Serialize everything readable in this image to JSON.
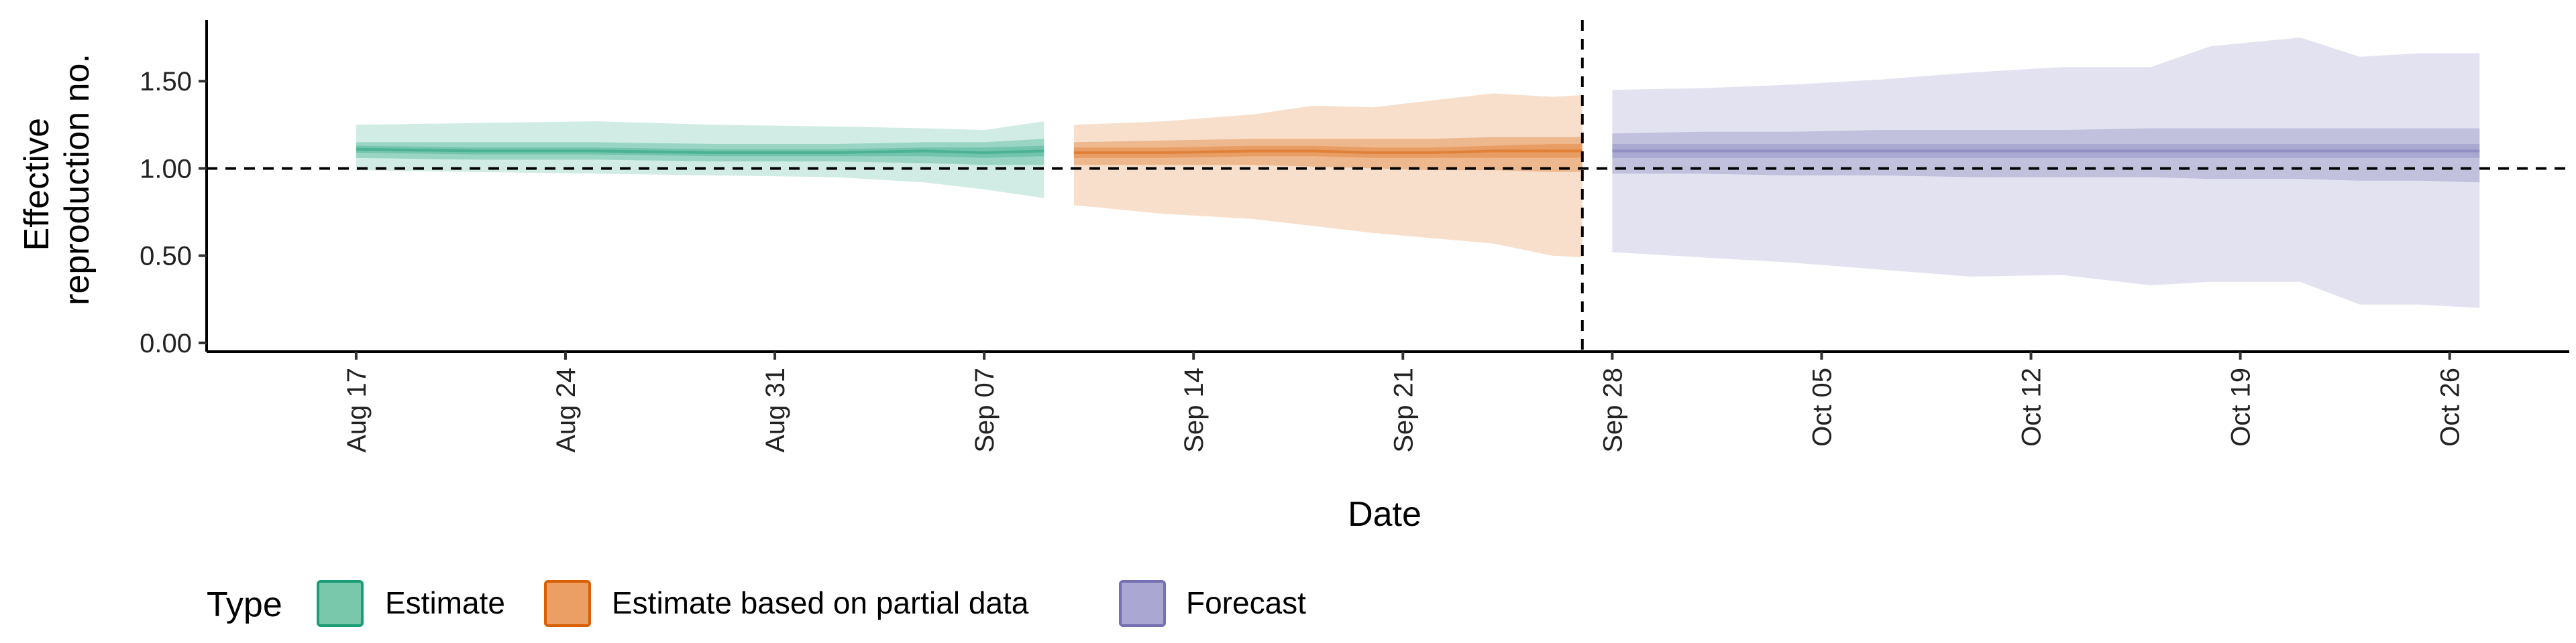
{
  "chart_data": {
    "type": "area",
    "xlabel": "Date",
    "ylabel_lines": [
      "Effective",
      "reproduction no."
    ],
    "ylim": [
      -0.05,
      1.85
    ],
    "xlim": [
      "2020-08-12",
      "2020-10-30"
    ],
    "y_ticks": [
      {
        "value": 0.0,
        "label": "0.00"
      },
      {
        "value": 0.5,
        "label": "0.50"
      },
      {
        "value": 1.0,
        "label": "1.00"
      },
      {
        "value": 1.5,
        "label": "1.50"
      }
    ],
    "x_ticks": [
      {
        "date": "2020-08-17",
        "label": "Aug 17"
      },
      {
        "date": "2020-08-24",
        "label": "Aug 24"
      },
      {
        "date": "2020-08-31",
        "label": "Aug 31"
      },
      {
        "date": "2020-09-07",
        "label": "Sep 07"
      },
      {
        "date": "2020-09-14",
        "label": "Sep 14"
      },
      {
        "date": "2020-09-21",
        "label": "Sep 21"
      },
      {
        "date": "2020-09-28",
        "label": "Sep 28"
      },
      {
        "date": "2020-10-05",
        "label": "Oct 05"
      },
      {
        "date": "2020-10-12",
        "label": "Oct 12"
      },
      {
        "date": "2020-10-19",
        "label": "Oct 19"
      },
      {
        "date": "2020-10-26",
        "label": "Oct 26"
      }
    ],
    "reference_hline": 1.0,
    "reference_vline": "2020-09-27",
    "legend": {
      "title": "Type",
      "placement": "bottom-left",
      "entries": [
        {
          "label": "Estimate",
          "fill": "#7ac8ac",
          "stroke": "#1b9e77"
        },
        {
          "label": "Estimate based on partial data",
          "fill": "#ec9f64",
          "stroke": "#d95f02"
        },
        {
          "label": "Forecast",
          "fill": "#aaa8d3",
          "stroke": "#7570b3"
        }
      ]
    },
    "series": [
      {
        "name": "Estimate",
        "color": "#1b9e77",
        "start": "2020-08-17",
        "end": "2020-09-09",
        "dates": [
          "2020-08-17",
          "2020-08-21",
          "2020-08-25",
          "2020-08-29",
          "2020-09-02",
          "2020-09-05",
          "2020-09-07",
          "2020-09-09"
        ],
        "median": [
          1.11,
          1.1,
          1.1,
          1.09,
          1.09,
          1.1,
          1.09,
          1.1
        ],
        "lower20": [
          1.09,
          1.08,
          1.08,
          1.07,
          1.07,
          1.07,
          1.06,
          1.07
        ],
        "upper20": [
          1.13,
          1.12,
          1.12,
          1.11,
          1.11,
          1.12,
          1.12,
          1.13
        ],
        "lower50": [
          1.06,
          1.05,
          1.05,
          1.04,
          1.04,
          1.03,
          1.02,
          1.02
        ],
        "upper50": [
          1.15,
          1.15,
          1.15,
          1.14,
          1.14,
          1.15,
          1.15,
          1.17
        ],
        "lower90": [
          0.99,
          0.98,
          0.97,
          0.96,
          0.95,
          0.92,
          0.88,
          0.83
        ],
        "upper90": [
          1.25,
          1.26,
          1.27,
          1.25,
          1.24,
          1.23,
          1.22,
          1.27
        ]
      },
      {
        "name": "Estimate based on partial data",
        "color": "#d95f02",
        "start": "2020-09-10",
        "end": "2020-09-27",
        "dates": [
          "2020-09-10",
          "2020-09-13",
          "2020-09-16",
          "2020-09-18",
          "2020-09-20",
          "2020-09-22",
          "2020-09-24",
          "2020-09-26",
          "2020-09-27"
        ],
        "median": [
          1.09,
          1.09,
          1.1,
          1.1,
          1.09,
          1.09,
          1.1,
          1.1,
          1.1
        ],
        "lower20": [
          1.06,
          1.06,
          1.07,
          1.07,
          1.06,
          1.06,
          1.06,
          1.06,
          1.06
        ],
        "upper20": [
          1.12,
          1.12,
          1.13,
          1.13,
          1.12,
          1.12,
          1.13,
          1.14,
          1.14
        ],
        "lower50": [
          1.02,
          1.02,
          1.02,
          1.01,
          1.0,
          0.99,
          0.99,
          0.98,
          0.98
        ],
        "upper50": [
          1.15,
          1.16,
          1.17,
          1.17,
          1.17,
          1.17,
          1.18,
          1.18,
          1.18
        ],
        "lower90": [
          0.79,
          0.74,
          0.71,
          0.67,
          0.63,
          0.6,
          0.57,
          0.5,
          0.49
        ],
        "upper90": [
          1.25,
          1.27,
          1.31,
          1.36,
          1.35,
          1.39,
          1.43,
          1.41,
          1.42
        ]
      },
      {
        "name": "Forecast",
        "color": "#7570b3",
        "start": "2020-09-28",
        "end": "2020-10-27",
        "dates": [
          "2020-09-28",
          "2020-10-01",
          "2020-10-04",
          "2020-10-07",
          "2020-10-10",
          "2020-10-13",
          "2020-10-16",
          "2020-10-18",
          "2020-10-21",
          "2020-10-23",
          "2020-10-25",
          "2020-10-27"
        ],
        "median": [
          1.1,
          1.1,
          1.1,
          1.1,
          1.1,
          1.1,
          1.1,
          1.1,
          1.1,
          1.1,
          1.1,
          1.1
        ],
        "lower20": [
          1.06,
          1.06,
          1.06,
          1.06,
          1.06,
          1.06,
          1.06,
          1.06,
          1.06,
          1.06,
          1.06,
          1.06
        ],
        "upper20": [
          1.14,
          1.14,
          1.14,
          1.14,
          1.14,
          1.14,
          1.14,
          1.14,
          1.14,
          1.14,
          1.14,
          1.14
        ],
        "lower50": [
          0.97,
          0.97,
          0.96,
          0.96,
          0.95,
          0.95,
          0.95,
          0.94,
          0.94,
          0.93,
          0.93,
          0.92
        ],
        "upper50": [
          1.2,
          1.21,
          1.21,
          1.22,
          1.22,
          1.22,
          1.23,
          1.23,
          1.23,
          1.23,
          1.23,
          1.23
        ],
        "lower90": [
          0.52,
          0.49,
          0.46,
          0.42,
          0.38,
          0.39,
          0.33,
          0.35,
          0.35,
          0.22,
          0.22,
          0.2
        ],
        "upper90": [
          1.45,
          1.46,
          1.48,
          1.51,
          1.55,
          1.58,
          1.58,
          1.7,
          1.75,
          1.64,
          1.66,
          1.66
        ]
      }
    ]
  }
}
